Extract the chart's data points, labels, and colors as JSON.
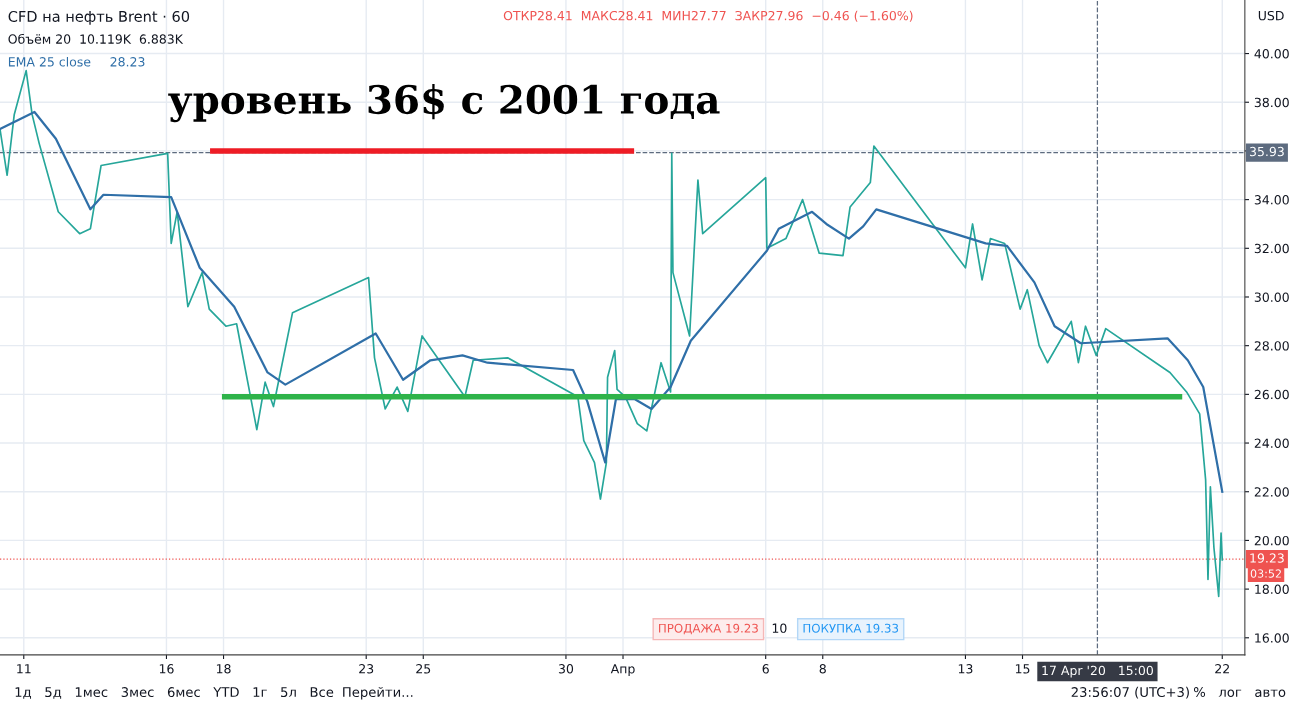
{
  "chart_data": {
    "type": "line",
    "title": "CFD на нефть Brent · 60",
    "x": [
      "2020-03-10T04:00",
      "2020-03-10T10:00",
      "2020-03-10T16:00",
      "2020-03-11T02:00",
      "2020-03-11T07:00",
      "2020-03-11T13:00",
      "2020-03-12T05:00",
      "2020-03-12T23:00",
      "2020-03-13T08:00",
      "2020-03-13T17:00",
      "2020-03-16T01:00",
      "2020-03-16T04:00",
      "2020-03-16T09:00",
      "2020-03-16T18:00",
      "2020-03-17T06:00",
      "2020-03-17T12:00",
      "2020-03-18T02:00",
      "2020-03-18T11:00",
      "2020-03-19T04:00",
      "2020-03-19T11:00",
      "2020-03-19T18:00",
      "2020-03-20T10:00",
      "2020-03-23T02:00",
      "2020-03-23T07:00",
      "2020-03-23T16:00",
      "2020-03-24T02:00",
      "2020-03-24T11:00",
      "2020-03-24T23:00",
      "2020-03-26T11:00",
      "2020-03-26T18:00",
      "2020-03-27T23:00",
      "2020-03-30T10:00",
      "2020-03-30T15:00",
      "2020-03-31T00:00",
      "2020-03-31T05:00",
      "2020-03-31T10:00",
      "2020-03-31T11:00",
      "2020-03-31T17:00",
      "2020-03-31T19:00",
      "2020-04-01T02:00",
      "2020-04-01T12:00",
      "2020-04-01T20:00",
      "2020-04-02T08:00",
      "2020-04-02T16:00",
      "2020-04-02T17:00",
      "2020-04-02T18:00",
      "2020-04-03T08:00",
      "2020-04-03T15:00",
      "2020-04-03T19:00",
      "2020-04-06T00:00",
      "2020-04-06T01:00",
      "2020-04-06T17:00",
      "2020-04-07T07:00",
      "2020-04-07T21:00",
      "2020-04-08T17:00",
      "2020-04-08T23:00",
      "2020-04-09T16:00",
      "2020-04-09T19:00",
      "2020-04-13T00:00",
      "2020-04-13T06:00",
      "2020-04-13T14:00",
      "2020-04-13T21:00",
      "2020-04-14T09:00",
      "2020-04-14T22:00",
      "2020-04-15T04:00",
      "2020-04-15T14:00",
      "2020-04-15T21:00",
      "2020-04-16T17:00",
      "2020-04-16T23:00",
      "2020-04-17T05:00",
      "2020-04-17T14:00",
      "2020-04-17T22:00",
      "2020-04-20T04:00",
      "2020-04-20T18:00",
      "2020-04-21T05:00",
      "2020-04-21T10:00",
      "2020-04-21T12:00",
      "2020-04-21T14:00",
      "2020-04-21T17:00",
      "2020-04-21T21:00",
      "2020-04-21T23:00",
      "2020-04-22T00:00"
    ],
    "series": [
      {
        "color": "#26a69a",
        "values": [
          36.9,
          35.0,
          37.5,
          39.3,
          37.5,
          36.3,
          33.5,
          32.6,
          32.8,
          35.4,
          35.9,
          32.2,
          33.5,
          29.6,
          31.0,
          29.5,
          28.8,
          28.9,
          24.55,
          26.5,
          25.5,
          29.35,
          30.8,
          27.5,
          25.4,
          26.3,
          25.3,
          28.4,
          25.9,
          27.4,
          27.5,
          25.9,
          24.1,
          23.2,
          21.7,
          23.2,
          26.7,
          27.8,
          26.2,
          25.9,
          24.8,
          24.5,
          27.3,
          26.1,
          35.9,
          31.0,
          28.4,
          34.8,
          32.6,
          34.9,
          32.0,
          32.4,
          34.0,
          31.8,
          31.7,
          33.7,
          34.7,
          36.2,
          31.2,
          33.0,
          30.7,
          32.4,
          32.2,
          29.5,
          30.3,
          28.0,
          27.3,
          29.0,
          27.3,
          28.8,
          27.6,
          28.7,
          26.9,
          26.1,
          25.2,
          22.5,
          18.4,
          22.2,
          19.7,
          17.7,
          20.3,
          19.2
        ]
      },
      {
        "name": "EMA 25 close",
        "color": "#2f6fa8",
        "x": [
          "2020-03-10T04:00",
          "2020-03-11T09:00",
          "2020-03-12T03:00",
          "2020-03-13T08:00",
          "2020-03-13T19:00",
          "2020-03-16T04:00",
          "2020-03-17T04:00",
          "2020-03-18T09:00",
          "2020-03-19T13:00",
          "2020-03-20T04:00",
          "2020-03-23T08:00",
          "2020-03-24T07:00",
          "2020-03-25T06:00",
          "2020-03-26T09:00",
          "2020-03-27T06:00",
          "2020-03-30T06:00",
          "2020-03-30T18:00",
          "2020-03-31T09:00",
          "2020-03-31T18:00",
          "2020-04-01T10:00",
          "2020-04-02T00:00",
          "2020-04-02T16:00",
          "2020-04-03T09:00",
          "2020-04-06T01:00",
          "2020-04-06T11:00",
          "2020-04-07T15:00",
          "2020-04-08T03:00",
          "2020-04-08T22:00",
          "2020-04-09T10:00",
          "2020-04-09T21:00",
          "2020-04-13T17:00",
          "2020-04-14T11:00",
          "2020-04-15T10:00",
          "2020-04-16T03:00",
          "2020-04-17T01:00",
          "2020-04-20T02:00",
          "2020-04-20T19:00",
          "2020-04-21T08:00",
          "2020-04-22T00:00"
        ],
        "values": [
          36.9,
          37.6,
          36.5,
          33.6,
          34.2,
          34.1,
          31.2,
          29.6,
          26.9,
          26.4,
          28.5,
          26.6,
          27.4,
          27.6,
          27.3,
          27.0,
          25.7,
          23.2,
          25.8,
          25.8,
          25.4,
          26.3,
          28.2,
          31.9,
          32.8,
          33.5,
          33.0,
          32.4,
          32.9,
          33.6,
          32.2,
          32.1,
          30.6,
          28.8,
          28.1,
          28.3,
          27.4,
          26.3,
          22.0
        ]
      },
      {
        "color": "#2eb34a",
        "x": [
          "2020-03-18T01:00",
          "2020-04-20T12:00"
        ],
        "values": [
          25.9,
          25.9
        ]
      },
      {
        "color": "#ee1c25",
        "x": [
          "2020-03-17T15:00",
          "2020-04-01T07:00"
        ],
        "values": [
          36.0,
          36.0
        ]
      }
    ],
    "xlim": [
      "2020-03-10T04:00",
      "2020-04-22T19:00"
    ],
    "xticks": [
      {
        "value": "2020-03-11",
        "label": "11"
      },
      {
        "value": "2020-03-16",
        "label": "16"
      },
      {
        "value": "2020-03-18",
        "label": "18"
      },
      {
        "value": "2020-03-23",
        "label": "23"
      },
      {
        "value": "2020-03-25",
        "label": "25"
      },
      {
        "value": "2020-03-30",
        "label": "30"
      },
      {
        "value": "2020-04-01",
        "label": "Апр"
      },
      {
        "value": "2020-04-06",
        "label": "6"
      },
      {
        "value": "2020-04-08",
        "label": "8"
      },
      {
        "value": "2020-04-13",
        "label": "13"
      },
      {
        "value": "2020-04-15",
        "label": "15"
      },
      {
        "value": "2020-04-22",
        "label": "22"
      }
    ],
    "ylim": [
      15.3,
      42.2
    ],
    "yticks": [
      {
        "value": 16,
        "label": "16.00"
      },
      {
        "value": 18,
        "label": "18.00"
      },
      {
        "value": 20,
        "label": "20.00"
      },
      {
        "value": 22,
        "label": "22.00"
      },
      {
        "value": 24,
        "label": "24.00"
      },
      {
        "value": 26,
        "label": "26.00"
      },
      {
        "value": 28,
        "label": "28.00"
      },
      {
        "value": 30,
        "label": "30.00"
      },
      {
        "value": 32,
        "label": "32.00"
      },
      {
        "value": 34,
        "label": "34.00"
      },
      {
        "value": 36,
        "label": null
      },
      {
        "value": 38,
        "label": "38.00"
      },
      {
        "value": 40,
        "label": "40.00"
      }
    ],
    "grid": true,
    "ref_lines": [
      {
        "axis": "y",
        "value": 35.93,
        "label": "35.93",
        "color": "#5d6b7f",
        "line_style": "dashed"
      },
      {
        "axis": "y",
        "value": 19.23,
        "label": "19.23",
        "color": "#ef5350",
        "line_style": "dotted"
      },
      {
        "axis": "x",
        "value": "2020-04-17T15:00",
        "label": "17 Apr '20   15:00",
        "color": "#5d6b7f",
        "line_style": "dashed"
      }
    ],
    "annotations": [
      "ОТКР28.41  МАКС28.41  МИН27.77  ЗАКР27.96  −0.46 (−1.60%)",
      "Объём 20  10.119K  6.883K",
      "28.23",
      "уровень 36$ с 2001 года",
      "USD",
      "03:52",
      "ПРОДАЖА 19.23",
      "10",
      "ПОКУПКА 19.33",
      "1д   5д   1мес   3мес   6мес   YTD   1г   5л   Все",
      "Перейти...",
      "23:56:07 (UTC+3)",
      "%   лог   авто"
    ]
  }
}
